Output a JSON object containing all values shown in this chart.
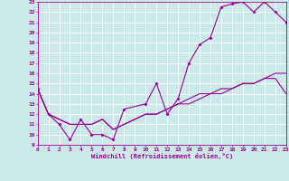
{
  "xlabel": "Windchill (Refroidissement éolien,°C)",
  "bg_color": "#cce8e8",
  "line_color": "#990099",
  "grid_color": "#ffffff",
  "xmin": 0,
  "xmax": 23,
  "ymin": 9,
  "ymax": 23,
  "line1_x": [
    0,
    1,
    2,
    3,
    4,
    5,
    6,
    7,
    8,
    10,
    11,
    12,
    13,
    14,
    15,
    16,
    17,
    18,
    19,
    20,
    21,
    22,
    23
  ],
  "line1_y": [
    14.5,
    12,
    11,
    9.5,
    11.5,
    10,
    10,
    9.5,
    12.5,
    13,
    15,
    12,
    13.5,
    17,
    18.8,
    19.5,
    22.5,
    22.8,
    23,
    22,
    23,
    22,
    21
  ],
  "line2_x": [
    0,
    1,
    2,
    3,
    4,
    5,
    6,
    7,
    8,
    9,
    10,
    11,
    12,
    13,
    14,
    15,
    16,
    17,
    18,
    19,
    20,
    21,
    22,
    23
  ],
  "line2_y": [
    14.5,
    12,
    11.5,
    11,
    11,
    11,
    11.5,
    10.5,
    11,
    11.5,
    12,
    12,
    12.5,
    13,
    13.5,
    14,
    14,
    14.5,
    14.5,
    15,
    15,
    15.5,
    16,
    16
  ],
  "line3_x": [
    0,
    1,
    2,
    3,
    4,
    5,
    6,
    7,
    8,
    9,
    10,
    11,
    12,
    13,
    14,
    15,
    16,
    17,
    18,
    19,
    20,
    21,
    22,
    23
  ],
  "line3_y": [
    14.5,
    12,
    11.5,
    11,
    11,
    11,
    11.5,
    10.5,
    11,
    11.5,
    12,
    12,
    12.5,
    13,
    13,
    13.5,
    14,
    14,
    14.5,
    15,
    15,
    15.5,
    15.5,
    14
  ]
}
